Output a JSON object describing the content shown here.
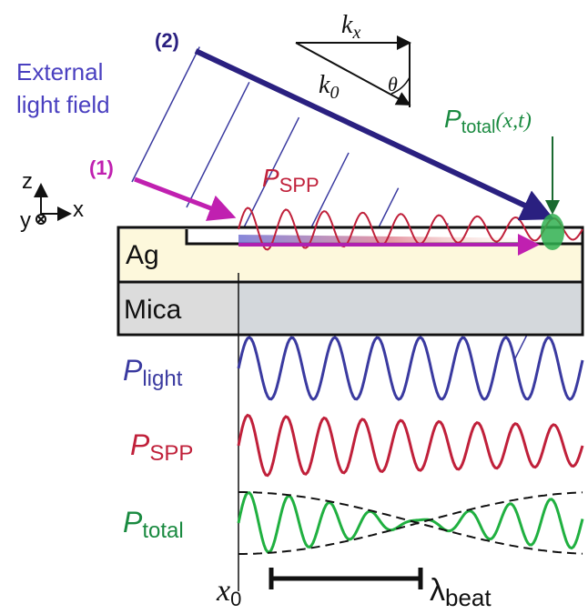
{
  "labels": {
    "beam_2": "(2)",
    "beam_1": "(1)",
    "external_light": [
      "External",
      "light field"
    ],
    "kx": {
      "main": "k",
      "sub": "x"
    },
    "k0": {
      "main": "k",
      "sub": "0"
    },
    "theta": "θ",
    "p_total_top": {
      "main": "P",
      "sub": "total",
      "suffix": "(x,t)"
    },
    "p_spp_top": {
      "main": "P",
      "sub": "SPP"
    },
    "axes": {
      "z": "z",
      "x": "x",
      "y": "y"
    },
    "ag": "Ag",
    "mica": "Mica",
    "p_light": {
      "main": "P",
      "sub": "light"
    },
    "p_spp": {
      "main": "P",
      "sub": "SPP"
    },
    "p_total": {
      "main": "P",
      "sub": "total"
    },
    "x0": {
      "main": "x",
      "sub": "0"
    },
    "lambda_beat": {
      "main": "λ",
      "sub": "beat"
    }
  }
}
